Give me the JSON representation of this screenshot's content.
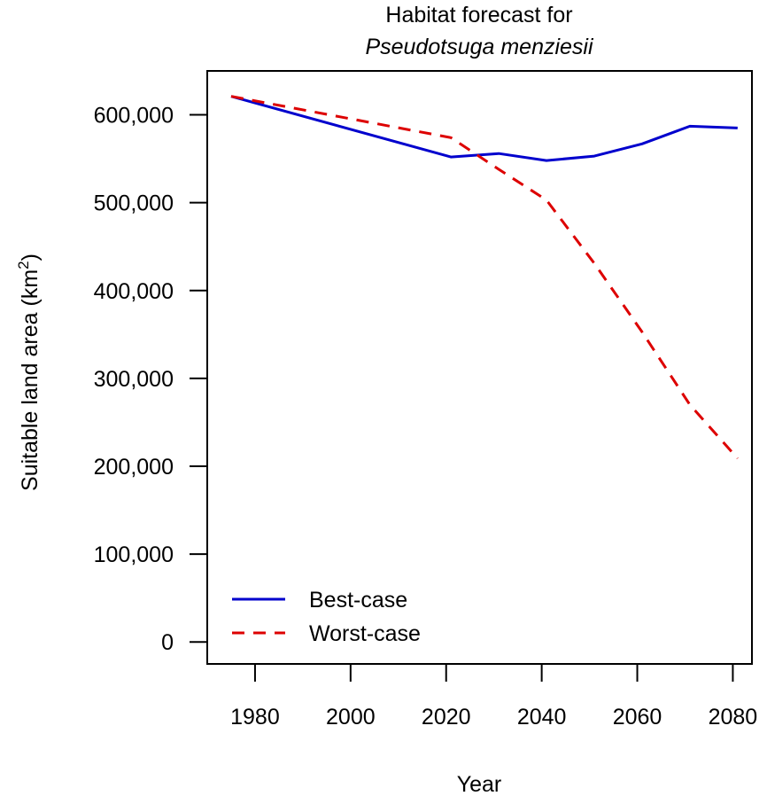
{
  "chart_data": {
    "type": "line",
    "title": "Habitat forecast for",
    "subtitle": "Pseudotsuga menziesii",
    "xlabel": "Year",
    "ylabel": "Suitable land area (km",
    "ylabel_superscript": "2",
    "ylabel_suffix": ")",
    "xlim": [
      1970,
      2084
    ],
    "ylim": [
      -25000,
      650000
    ],
    "xticks": [
      1980,
      2000,
      2020,
      2040,
      2060,
      2080
    ],
    "yticks": [
      0,
      100000,
      200000,
      300000,
      400000,
      500000,
      600000
    ],
    "ytick_labels": [
      "0",
      "100,000",
      "200,000",
      "300,000",
      "400,000",
      "500,000",
      "600,000"
    ],
    "grid": false,
    "legend_position": "bottom-left",
    "series": [
      {
        "name": "Best-case",
        "color": "#0000CD",
        "style": "solid",
        "x": [
          1975,
          2021,
          2031,
          2041,
          2051,
          2061,
          2071,
          2081
        ],
        "y": [
          621000,
          552000,
          556000,
          548000,
          553000,
          567000,
          587000,
          585000
        ]
      },
      {
        "name": "Worst-case",
        "color": "#DD0000",
        "style": "dashed",
        "x": [
          1975,
          2021,
          2031,
          2041,
          2051,
          2061,
          2071,
          2081
        ],
        "y": [
          621000,
          574000,
          538000,
          503000,
          431000,
          353000,
          270000,
          209000
        ]
      }
    ]
  }
}
